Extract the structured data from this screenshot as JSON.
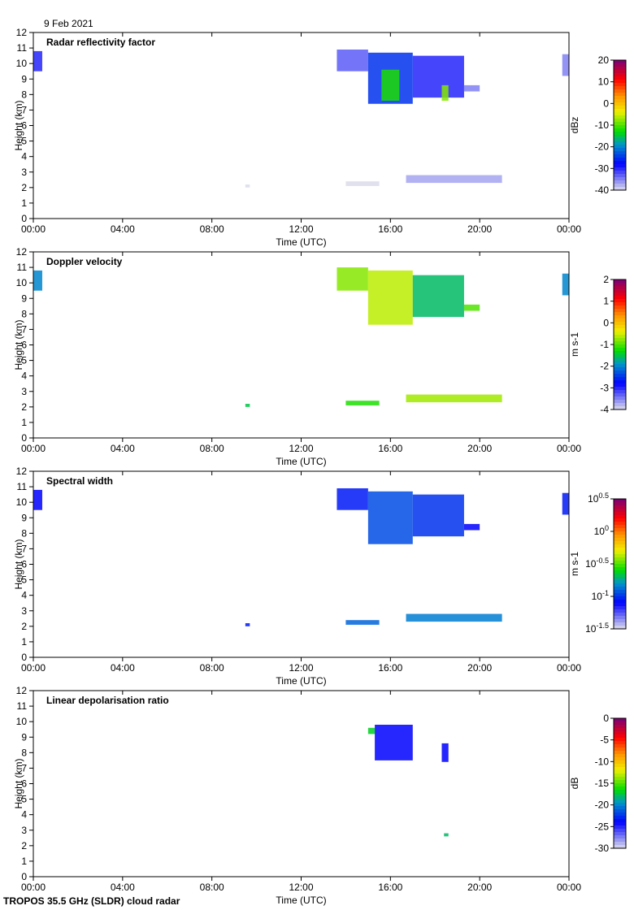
{
  "date_label": "9 Feb 2021",
  "footer": "TROPOS 35.5 GHz (SLDR) cloud radar",
  "chart_data": [
    {
      "type": "heatmap",
      "title": "Radar reflectivity factor",
      "xlabel": "Time (UTC)",
      "ylabel": "Height (km)",
      "xlim": [
        0,
        24
      ],
      "ylim": [
        0,
        12
      ],
      "xticks": [
        "00:00",
        "04:00",
        "08:00",
        "12:00",
        "16:00",
        "20:00",
        "00:00"
      ],
      "yticks": [
        "0",
        "1",
        "2",
        "3",
        "4",
        "5",
        "6",
        "7",
        "8",
        "9",
        "10",
        "11",
        "12"
      ],
      "colorbar": {
        "label": "dBz",
        "range": [
          -40,
          20
        ],
        "ticks": [
          "20",
          "10",
          "0",
          "-10",
          "-20",
          "-30",
          "-40"
        ]
      },
      "regions": [
        {
          "t": [
            0,
            0.4
          ],
          "h": [
            9.5,
            10.8
          ],
          "value": -30
        },
        {
          "t": [
            13.6,
            15.0
          ],
          "h": [
            9.5,
            10.9
          ],
          "value": -33
        },
        {
          "t": [
            15.0,
            17.0
          ],
          "h": [
            7.4,
            10.7
          ],
          "value": -25
        },
        {
          "t": [
            15.6,
            16.4
          ],
          "h": [
            7.6,
            9.6
          ],
          "value": -12
        },
        {
          "t": [
            17.0,
            19.3
          ],
          "h": [
            7.8,
            10.5
          ],
          "value": -30
        },
        {
          "t": [
            18.3,
            18.6
          ],
          "h": [
            7.6,
            8.6
          ],
          "value": -8
        },
        {
          "t": [
            19.3,
            20.0
          ],
          "h": [
            8.2,
            8.6
          ],
          "value": -35
        },
        {
          "t": [
            23.7,
            24.0
          ],
          "h": [
            9.2,
            10.6
          ],
          "value": -35
        },
        {
          "t": [
            9.5,
            9.7
          ],
          "h": [
            2.0,
            2.2
          ],
          "value": -40
        },
        {
          "t": [
            14.0,
            15.5
          ],
          "h": [
            2.1,
            2.4
          ],
          "value": -40
        },
        {
          "t": [
            16.7,
            21.0
          ],
          "h": [
            2.3,
            2.8
          ],
          "value": -37
        }
      ]
    },
    {
      "type": "heatmap",
      "title": "Doppler velocity",
      "xlabel": "Time (UTC)",
      "ylabel": "Height (km)",
      "xlim": [
        0,
        24
      ],
      "ylim": [
        0,
        12
      ],
      "xticks": [
        "00:00",
        "04:00",
        "08:00",
        "12:00",
        "16:00",
        "20:00",
        "00:00"
      ],
      "yticks": [
        "0",
        "1",
        "2",
        "3",
        "4",
        "5",
        "6",
        "7",
        "8",
        "9",
        "10",
        "11",
        "12"
      ],
      "colorbar": {
        "label": "m s-1",
        "range": [
          -4,
          2
        ],
        "ticks": [
          "2",
          "1",
          "0",
          "-1",
          "-2",
          "-3",
          "-4"
        ]
      },
      "regions": [
        {
          "t": [
            0,
            0.4
          ],
          "h": [
            9.5,
            10.8
          ],
          "value": -2
        },
        {
          "t": [
            13.6,
            15.0
          ],
          "h": [
            9.5,
            11.0
          ],
          "value": -0.8
        },
        {
          "t": [
            15.0,
            17.0
          ],
          "h": [
            7.3,
            10.8
          ],
          "value": -0.6
        },
        {
          "t": [
            17.0,
            19.3
          ],
          "h": [
            7.8,
            10.5
          ],
          "value": -1.6
        },
        {
          "t": [
            19.3,
            20.0
          ],
          "h": [
            8.2,
            8.6
          ],
          "value": -1.0
        },
        {
          "t": [
            23.7,
            24.0
          ],
          "h": [
            9.2,
            10.6
          ],
          "value": -2
        },
        {
          "t": [
            9.5,
            9.7
          ],
          "h": [
            2.0,
            2.2
          ],
          "value": -1.5
        },
        {
          "t": [
            14.0,
            15.5
          ],
          "h": [
            2.1,
            2.4
          ],
          "value": -1.2
        },
        {
          "t": [
            16.7,
            21.0
          ],
          "h": [
            2.3,
            2.8
          ],
          "value": -0.7
        }
      ]
    },
    {
      "type": "heatmap",
      "title": "Spectral width",
      "xlabel": "Time (UTC)",
      "ylabel": "Height (km)",
      "xlim": [
        0,
        24
      ],
      "ylim": [
        0,
        12
      ],
      "xticks": [
        "00:00",
        "04:00",
        "08:00",
        "12:00",
        "16:00",
        "20:00",
        "00:00"
      ],
      "yticks": [
        "0",
        "1",
        "2",
        "3",
        "4",
        "5",
        "6",
        "7",
        "8",
        "9",
        "10",
        "11",
        "12"
      ],
      "colorbar": {
        "label": "m s-1",
        "range_log10": [
          -1.5,
          0.5
        ],
        "ticks": [
          "10^0.5",
          "10^0",
          "10^-0.5",
          "10^-1",
          "10^-1.5"
        ]
      },
      "regions": [
        {
          "t": [
            0,
            0.4
          ],
          "h": [
            9.5,
            10.8
          ],
          "value": -1.1
        },
        {
          "t": [
            13.6,
            15.0
          ],
          "h": [
            9.5,
            10.9
          ],
          "value": -1.05
        },
        {
          "t": [
            15.0,
            17.0
          ],
          "h": [
            7.3,
            10.7
          ],
          "value": -0.95
        },
        {
          "t": [
            17.0,
            19.3
          ],
          "h": [
            7.8,
            10.5
          ],
          "value": -1.0
        },
        {
          "t": [
            19.3,
            20.0
          ],
          "h": [
            8.2,
            8.6
          ],
          "value": -1.1
        },
        {
          "t": [
            23.7,
            24.0
          ],
          "h": [
            9.2,
            10.6
          ],
          "value": -1.05
        },
        {
          "t": [
            9.5,
            9.7
          ],
          "h": [
            2.0,
            2.2
          ],
          "value": -1.05
        },
        {
          "t": [
            14.0,
            15.5
          ],
          "h": [
            2.1,
            2.4
          ],
          "value": -0.9
        },
        {
          "t": [
            16.7,
            21.0
          ],
          "h": [
            2.3,
            2.8
          ],
          "value": -0.85
        }
      ]
    },
    {
      "type": "heatmap",
      "title": "Linear depolarisation ratio",
      "xlabel": "Time (UTC)",
      "ylabel": "Height (km)",
      "xlim": [
        0,
        24
      ],
      "ylim": [
        0,
        12
      ],
      "xticks": [
        "00:00",
        "04:00",
        "08:00",
        "12:00",
        "16:00",
        "20:00",
        "00:00"
      ],
      "yticks": [
        "0",
        "1",
        "2",
        "3",
        "4",
        "5",
        "6",
        "7",
        "8",
        "9",
        "10",
        "11",
        "12"
      ],
      "colorbar": {
        "label": "dB",
        "range": [
          -30,
          0
        ],
        "ticks": [
          "0",
          "-5",
          "-10",
          "-15",
          "-20",
          "-25",
          "-30"
        ]
      },
      "regions": [
        {
          "t": [
            15.0,
            15.3
          ],
          "h": [
            9.2,
            9.6
          ],
          "value": -17
        },
        {
          "t": [
            15.3,
            17.0
          ],
          "h": [
            7.5,
            9.8
          ],
          "value": -24
        },
        {
          "t": [
            18.3,
            18.6
          ],
          "h": [
            7.4,
            8.6
          ],
          "value": -24
        },
        {
          "t": [
            18.4,
            18.6
          ],
          "h": [
            2.6,
            2.8
          ],
          "value": -18
        }
      ]
    }
  ]
}
